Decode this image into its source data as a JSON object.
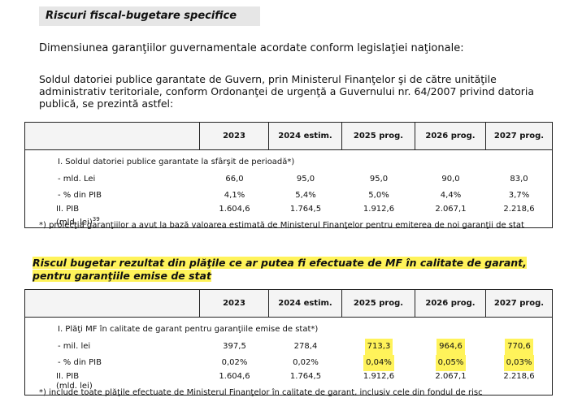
{
  "section_title": "Riscuri fiscal-bugetare specifice",
  "intro": "Dimensiunea garanţiilor guvernamentale acordate conform legislaţiei naţionale:",
  "paragraph": "Soldul datoriei publice garantate de Guvern, prin Ministerul Finanţelor şi de către unităţile administrativ teritoriale, conform Ordonanţei de urgenţă a Guvernului nr. 64/2007 privind datoria publică, se prezintă astfel:",
  "table1": {
    "columns": [
      "2023",
      "2024 estim.",
      "2025 prog.",
      "2026 prog.",
      "2027 prog."
    ],
    "section_row": "I.   Soldul datoriei publice garantate la sfârşit de perioadă*)",
    "rows": [
      {
        "label": "- mld. Lei",
        "cells": [
          "66,0",
          "95,0",
          "95,0",
          "90,0",
          "83,0"
        ]
      },
      {
        "label": "- % din PIB",
        "cells": [
          "4,1%",
          "5,4%",
          "5,0%",
          "4,4%",
          "3,7%"
        ]
      }
    ],
    "pib_row": {
      "label": "II. PIB",
      "sublabel": "(mld. lei)",
      "note": "39",
      "cells": [
        "1.604,6",
        "1.764,5",
        "1.912,6",
        "2.067,1",
        "2.218,6"
      ]
    }
  },
  "table1_footnote": "*) proiecţia garanţiilor a avut la bază valoarea estimată de Ministerul Finanţelor pentru emiterea de noi garanţii de stat",
  "highlight_heading": "Riscul bugetar rezultat din plăţile ce ar putea fi efectuate de MF în calitate de garant, pentru garanţiile emise de stat",
  "table2": {
    "columns": [
      "2023",
      "2024 estim.",
      "2025 prog.",
      "2026 prog.",
      "2027 prog."
    ],
    "section_row": "I.   Plăţi MF în calitate de garant pentru garanţiile emise de stat*)",
    "rows": [
      {
        "label": "- mil. lei",
        "cells": [
          "397,5",
          "278,4",
          "713,3",
          "964,6",
          "770,6"
        ]
      },
      {
        "label": "- % din PIB",
        "cells": [
          "0,02%",
          "0,02%",
          "0,04%",
          "0,05%",
          "0,03%"
        ]
      }
    ],
    "pib_row": {
      "label": "II. PIB",
      "sublabel": "(mld. lei)",
      "cells": [
        "1.604,6",
        "1.764,5",
        "1.912,6",
        "2.067,1",
        "2.218,6"
      ]
    }
  },
  "table2_footnote": "*) include toate plăţile efectuate de Ministerul Finanţelor în calitate de garant, inclusiv cele din fondul de risc"
}
